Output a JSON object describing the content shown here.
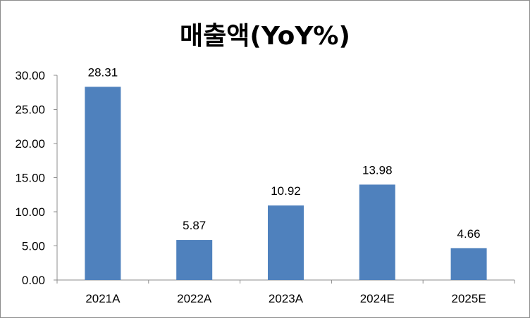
{
  "chart_data": {
    "type": "bar",
    "title": "매출액(YoY%)",
    "xlabel": "",
    "ylabel": "",
    "categories": [
      "2021A",
      "2022A",
      "2023A",
      "2024E",
      "2025E"
    ],
    "values": [
      28.31,
      5.87,
      10.92,
      13.98,
      4.66
    ],
    "value_labels": [
      "28.31",
      "5.87",
      "10.92",
      "13.98",
      "4.66"
    ],
    "ylim": [
      0,
      30
    ],
    "yticks": [
      "0.00",
      "5.00",
      "10.00",
      "15.00",
      "20.00",
      "25.00",
      "30.00"
    ],
    "grid": false,
    "legend": "none",
    "bar_color": "#4f81bd"
  }
}
